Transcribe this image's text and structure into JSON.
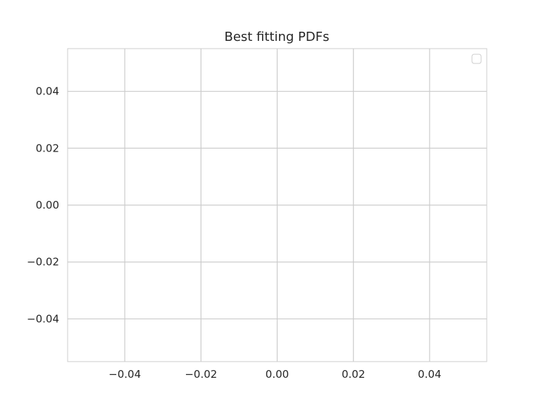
{
  "chart_data": {
    "type": "line",
    "title": "Best fitting PDFs",
    "xlabel": "",
    "ylabel": "",
    "xlim": [
      -0.055,
      0.055
    ],
    "ylim": [
      -0.055,
      0.055
    ],
    "x_ticks": [
      -0.04,
      -0.02,
      0.0,
      0.02,
      0.04
    ],
    "x_tick_labels": [
      "−0.04",
      "−0.02",
      "0.00",
      "0.02",
      "0.04"
    ],
    "y_ticks": [
      0.04,
      0.02,
      0.0,
      -0.02,
      -0.04
    ],
    "y_tick_labels": [
      "0.04",
      "0.02",
      "0.00",
      "−0.02",
      "−0.04"
    ],
    "series": [],
    "grid": true,
    "legend": {
      "placement": "upper right",
      "entries": []
    }
  },
  "colors": {
    "background": "#ffffff",
    "grid": "#cccccc",
    "spine": "#cccccc",
    "text": "#262626",
    "legend_border": "#cccccc"
  }
}
